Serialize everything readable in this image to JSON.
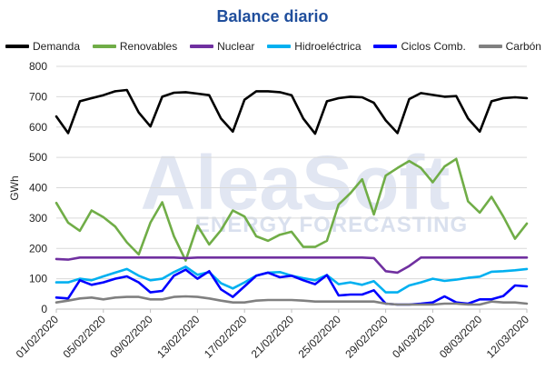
{
  "title": "Balance diario",
  "watermark": {
    "main": "AleaSoft",
    "sub": "ENERGY FORECASTING"
  },
  "chart_data": {
    "type": "line",
    "title": "Balance diario",
    "xlabel": "",
    "ylabel": "GWh",
    "ylim": [
      0,
      800
    ],
    "yticks": [
      0,
      100,
      200,
      300,
      400,
      500,
      600,
      700,
      800
    ],
    "grid": true,
    "legend_position": "top",
    "x": [
      "01/02/2020",
      "02/02/2020",
      "03/02/2020",
      "04/02/2020",
      "05/02/2020",
      "06/02/2020",
      "07/02/2020",
      "08/02/2020",
      "09/02/2020",
      "10/02/2020",
      "11/02/2020",
      "12/02/2020",
      "13/02/2020",
      "14/02/2020",
      "15/02/2020",
      "16/02/2020",
      "17/02/2020",
      "18/02/2020",
      "19/02/2020",
      "20/02/2020",
      "21/02/2020",
      "22/02/2020",
      "23/02/2020",
      "24/02/2020",
      "25/02/2020",
      "26/02/2020",
      "27/02/2020",
      "28/02/2020",
      "29/02/2020",
      "01/03/2020",
      "02/03/2020",
      "03/03/2020",
      "04/03/2020",
      "05/03/2020",
      "06/03/2020",
      "07/03/2020",
      "08/03/2020",
      "09/03/2020",
      "10/03/2020",
      "11/03/2020",
      "12/03/2020"
    ],
    "x_tick_labels": [
      "01/02/2020",
      "05/02/2020",
      "09/02/2020",
      "13/02/2020",
      "17/02/2020",
      "21/02/2020",
      "25/02/2020",
      "29/02/2020",
      "04/03/2020",
      "08/03/2020",
      "12/03/2020"
    ],
    "series": [
      {
        "name": "Demanda",
        "color": "#000000",
        "values": [
          635,
          580,
          685,
          695,
          705,
          718,
          722,
          648,
          602,
          700,
          713,
          715,
          710,
          705,
          628,
          585,
          690,
          718,
          718,
          715,
          705,
          628,
          578,
          685,
          695,
          700,
          698,
          680,
          622,
          580,
          692,
          712,
          706,
          700,
          702,
          628,
          585,
          685,
          695,
          698,
          695
        ]
      },
      {
        "name": "Renovables",
        "color": "#70ad47",
        "values": [
          350,
          285,
          258,
          325,
          303,
          272,
          220,
          180,
          285,
          352,
          240,
          160,
          275,
          213,
          260,
          325,
          305,
          240,
          225,
          245,
          255,
          205,
          205,
          225,
          345,
          382,
          428,
          312,
          440,
          465,
          488,
          465,
          418,
          470,
          495,
          355,
          318,
          370,
          305,
          232,
          282
        ]
      },
      {
        "name": "Nuclear",
        "color": "#7030a0",
        "values": [
          165,
          163,
          170,
          170,
          170,
          170,
          170,
          170,
          170,
          170,
          170,
          168,
          170,
          170,
          170,
          170,
          170,
          170,
          170,
          170,
          170,
          170,
          170,
          170,
          170,
          170,
          170,
          168,
          125,
          120,
          142,
          170,
          170,
          170,
          170,
          170,
          170,
          170,
          170,
          170,
          170
        ]
      },
      {
        "name": "Hidroeléctrica",
        "color": "#00b0f0",
        "values": [
          88,
          88,
          100,
          95,
          108,
          120,
          132,
          110,
          95,
          100,
          122,
          140,
          113,
          122,
          85,
          68,
          88,
          110,
          120,
          122,
          110,
          102,
          95,
          112,
          82,
          88,
          80,
          92,
          55,
          55,
          78,
          88,
          100,
          93,
          97,
          103,
          107,
          123,
          125,
          128,
          132
        ]
      },
      {
        "name": "Ciclos Comb.",
        "color": "#0000ff",
        "values": [
          38,
          35,
          95,
          80,
          88,
          100,
          108,
          88,
          55,
          60,
          110,
          130,
          100,
          125,
          65,
          40,
          75,
          110,
          120,
          105,
          110,
          95,
          82,
          112,
          45,
          48,
          48,
          62,
          18,
          15,
          15,
          18,
          22,
          42,
          22,
          18,
          32,
          32,
          43,
          78,
          75
        ]
      },
      {
        "name": "Carbón",
        "color": "#808080",
        "values": [
          22,
          28,
          35,
          38,
          32,
          38,
          40,
          40,
          32,
          32,
          40,
          42,
          40,
          35,
          28,
          22,
          22,
          28,
          30,
          30,
          30,
          28,
          25,
          25,
          25,
          25,
          25,
          25,
          18,
          15,
          15,
          15,
          15,
          18,
          18,
          15,
          15,
          25,
          22,
          22,
          18
        ]
      }
    ]
  }
}
